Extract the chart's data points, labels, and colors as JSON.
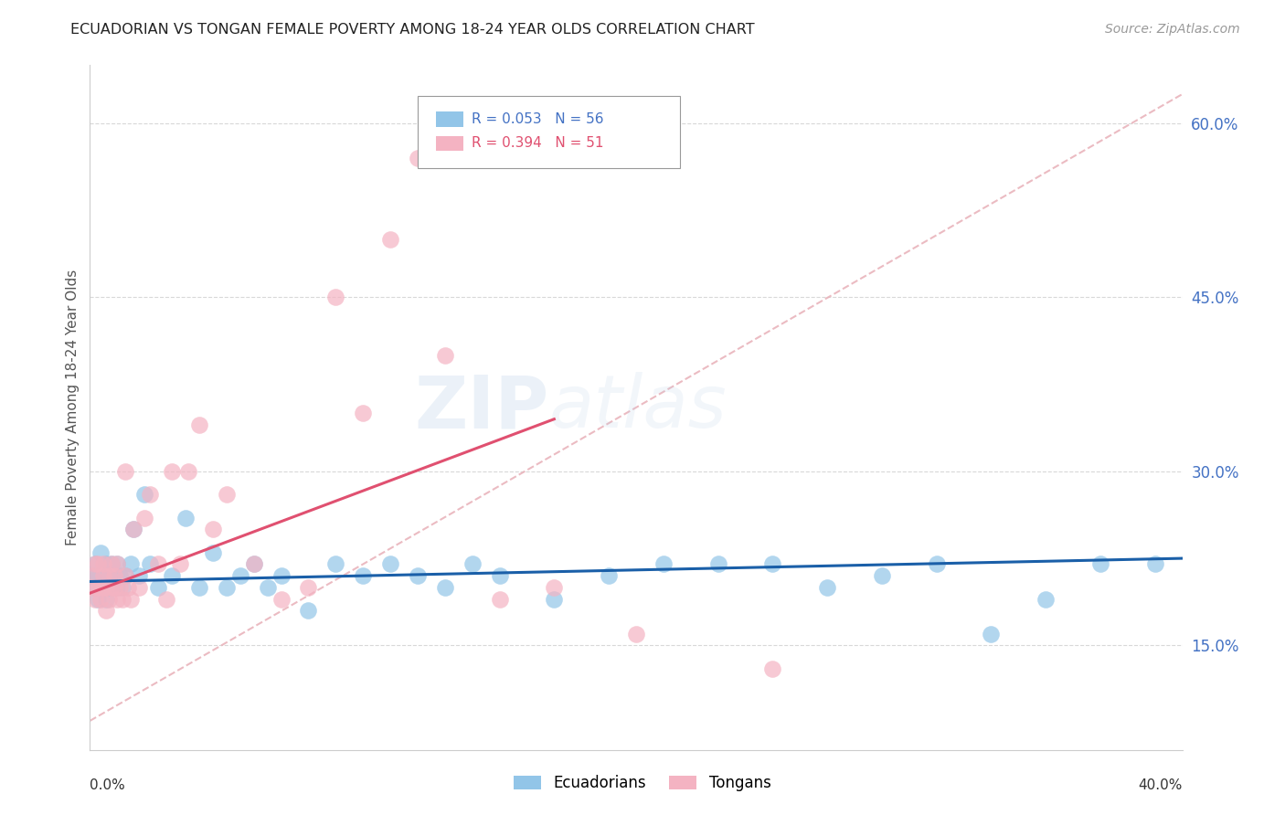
{
  "title": "ECUADORIAN VS TONGAN FEMALE POVERTY AMONG 18-24 YEAR OLDS CORRELATION CHART",
  "source": "Source: ZipAtlas.com",
  "ylabel": "Female Poverty Among 18-24 Year Olds",
  "xmin": 0.0,
  "xmax": 0.4,
  "ymin": 0.06,
  "ymax": 0.65,
  "blue_color": "#92c5e8",
  "pink_color": "#f4b3c2",
  "blue_line_color": "#1a5fa8",
  "pink_line_color": "#e05070",
  "dashed_color": "#e8b0b8",
  "grid_color": "#d8d8d8",
  "ytick_color": "#4472c4",
  "ecu_x": [
    0.001,
    0.002,
    0.002,
    0.003,
    0.003,
    0.004,
    0.004,
    0.005,
    0.005,
    0.006,
    0.006,
    0.007,
    0.007,
    0.008,
    0.008,
    0.009,
    0.01,
    0.01,
    0.011,
    0.012,
    0.013,
    0.015,
    0.016,
    0.018,
    0.02,
    0.022,
    0.025,
    0.03,
    0.035,
    0.04,
    0.045,
    0.05,
    0.055,
    0.06,
    0.065,
    0.07,
    0.08,
    0.09,
    0.1,
    0.11,
    0.12,
    0.13,
    0.14,
    0.15,
    0.17,
    0.19,
    0.21,
    0.23,
    0.25,
    0.27,
    0.29,
    0.31,
    0.33,
    0.35,
    0.37,
    0.39
  ],
  "ecu_y": [
    0.21,
    0.22,
    0.2,
    0.21,
    0.19,
    0.23,
    0.2,
    0.21,
    0.2,
    0.19,
    0.22,
    0.2,
    0.21,
    0.2,
    0.22,
    0.21,
    0.2,
    0.22,
    0.21,
    0.2,
    0.21,
    0.22,
    0.25,
    0.21,
    0.28,
    0.22,
    0.2,
    0.21,
    0.26,
    0.2,
    0.23,
    0.2,
    0.21,
    0.22,
    0.2,
    0.21,
    0.18,
    0.22,
    0.21,
    0.22,
    0.21,
    0.2,
    0.22,
    0.21,
    0.19,
    0.21,
    0.22,
    0.22,
    0.22,
    0.2,
    0.21,
    0.22,
    0.16,
    0.19,
    0.22,
    0.22
  ],
  "ton_x": [
    0.001,
    0.001,
    0.002,
    0.002,
    0.003,
    0.003,
    0.004,
    0.004,
    0.005,
    0.005,
    0.005,
    0.006,
    0.006,
    0.007,
    0.007,
    0.008,
    0.008,
    0.009,
    0.009,
    0.01,
    0.01,
    0.011,
    0.012,
    0.013,
    0.013,
    0.014,
    0.015,
    0.016,
    0.018,
    0.02,
    0.022,
    0.025,
    0.028,
    0.03,
    0.033,
    0.036,
    0.04,
    0.045,
    0.05,
    0.06,
    0.07,
    0.08,
    0.09,
    0.1,
    0.11,
    0.12,
    0.13,
    0.15,
    0.17,
    0.2,
    0.25
  ],
  "ton_y": [
    0.2,
    0.21,
    0.19,
    0.22,
    0.2,
    0.22,
    0.2,
    0.19,
    0.21,
    0.2,
    0.22,
    0.18,
    0.2,
    0.21,
    0.19,
    0.2,
    0.22,
    0.2,
    0.21,
    0.19,
    0.22,
    0.2,
    0.19,
    0.3,
    0.21,
    0.2,
    0.19,
    0.25,
    0.2,
    0.26,
    0.28,
    0.22,
    0.19,
    0.3,
    0.22,
    0.3,
    0.34,
    0.25,
    0.28,
    0.22,
    0.19,
    0.2,
    0.45,
    0.35,
    0.5,
    0.57,
    0.4,
    0.19,
    0.2,
    0.16,
    0.13
  ],
  "ecu_line_x": [
    0.0,
    0.4
  ],
  "ecu_line_y": [
    0.205,
    0.225
  ],
  "ton_line_x": [
    0.0,
    0.17
  ],
  "ton_line_y": [
    0.195,
    0.345
  ],
  "dash_line_x": [
    0.0,
    0.4
  ],
  "dash_line_y": [
    0.085,
    0.625
  ],
  "yticks": [
    0.15,
    0.3,
    0.45,
    0.6
  ],
  "ytick_labels": [
    "15.0%",
    "30.0%",
    "45.0%",
    "60.0%"
  ]
}
